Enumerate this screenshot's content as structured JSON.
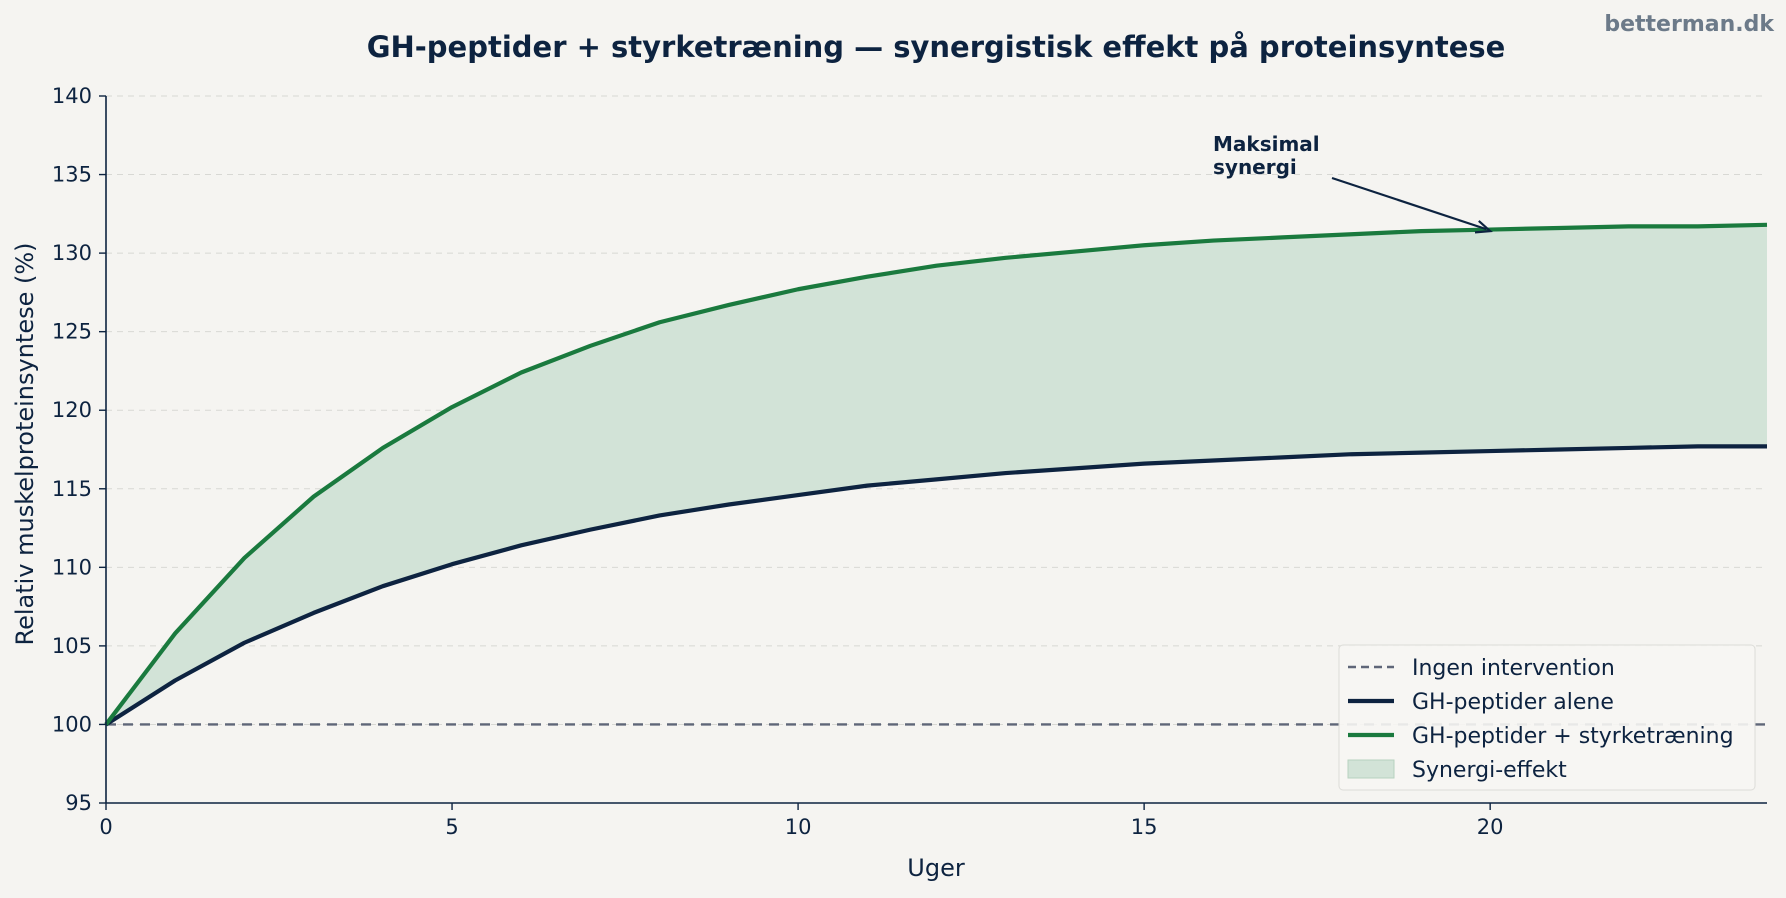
{
  "watermark": "betterman.dk",
  "colors": {
    "baseline": "#5f6678",
    "gh_alone": "#0d2340",
    "gh_strength": "#1a7a3e",
    "synergy_fill": "#d2e3d7",
    "grid": "#d8d8d4"
  },
  "chart_data": {
    "type": "line",
    "title": "GH-peptider + styrketræning — synergistisk effekt på proteinsyntese",
    "xlabel": "Uger",
    "ylabel": "Relativ muskelproteinsyntese (%)",
    "xlim": [
      0,
      24
    ],
    "ylim": [
      95,
      140
    ],
    "xticks": [
      0,
      5,
      10,
      15,
      20
    ],
    "yticks": [
      95,
      100,
      105,
      110,
      115,
      120,
      125,
      130,
      135,
      140
    ],
    "grid": "horizontal dashed",
    "legend_position": "bottom-right",
    "x": [
      0,
      1,
      2,
      3,
      4,
      5,
      6,
      7,
      8,
      9,
      10,
      11,
      12,
      13,
      14,
      15,
      16,
      17,
      18,
      19,
      20,
      21,
      22,
      23,
      24
    ],
    "series": [
      {
        "name": "Ingen intervention",
        "style": "dashed",
        "values": [
          100,
          100,
          100,
          100,
          100,
          100,
          100,
          100,
          100,
          100,
          100,
          100,
          100,
          100,
          100,
          100,
          100,
          100,
          100,
          100,
          100,
          100,
          100,
          100,
          100
        ]
      },
      {
        "name": "GH-peptider alene",
        "style": "solid",
        "values": [
          100,
          102.8,
          105.2,
          107.1,
          108.8,
          110.2,
          111.4,
          112.4,
          113.3,
          114.0,
          114.6,
          115.2,
          115.6,
          116.0,
          116.3,
          116.6,
          116.8,
          117.0,
          117.2,
          117.3,
          117.4,
          117.5,
          117.6,
          117.7,
          117.7
        ]
      },
      {
        "name": "GH-peptider + styrketræning",
        "style": "solid",
        "values": [
          100,
          105.8,
          110.6,
          114.5,
          117.6,
          120.2,
          122.4,
          124.1,
          125.6,
          126.7,
          127.7,
          128.5,
          129.2,
          129.7,
          130.1,
          130.5,
          130.8,
          131.0,
          131.2,
          131.4,
          131.5,
          131.6,
          131.7,
          131.7,
          131.8
        ]
      }
    ],
    "fill_between": {
      "name": "Synergi-effekt",
      "lower": "GH-peptider alene",
      "upper": "GH-peptider + styrketræning"
    },
    "annotation": {
      "lines": [
        "Maksimal",
        "synergi"
      ],
      "x": 20,
      "y": 131.4
    }
  }
}
